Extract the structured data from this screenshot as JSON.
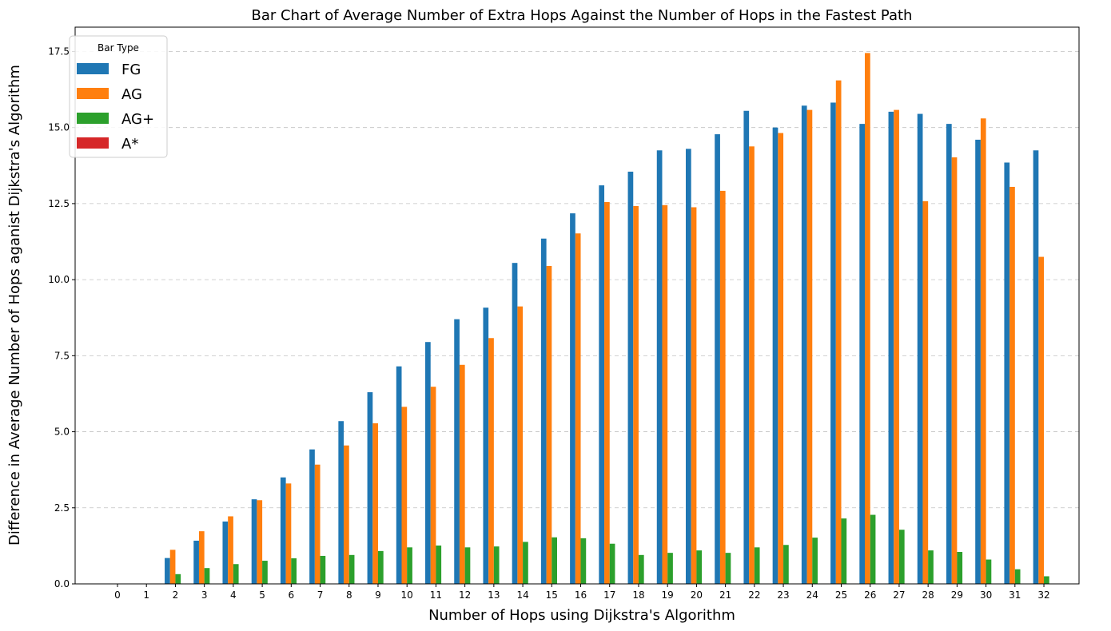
{
  "chart_data": {
    "type": "bar",
    "title": "Bar Chart of Average Number of Extra Hops Against the Number of Hops in the Fastest Path",
    "xlabel": "Number of Hops using Dijkstra's Algorithm",
    "ylabel": "Difference in Average Number of Hops aganist Dijkstra's Algorithm",
    "categories": [
      "0",
      "1",
      "2",
      "3",
      "4",
      "5",
      "6",
      "7",
      "8",
      "9",
      "10",
      "11",
      "12",
      "13",
      "14",
      "15",
      "16",
      "17",
      "18",
      "19",
      "20",
      "21",
      "22",
      "23",
      "24",
      "25",
      "26",
      "27",
      "28",
      "29",
      "30",
      "31",
      "32"
    ],
    "ylim": [
      0,
      18.3
    ],
    "yticks": [
      0.0,
      2.5,
      5.0,
      7.5,
      10.0,
      12.5,
      15.0,
      17.5
    ],
    "ytick_labels": [
      "0.0",
      "2.5",
      "5.0",
      "7.5",
      "10.0",
      "12.5",
      "15.0",
      "17.5"
    ],
    "grid": "horizontal dashed",
    "legend": {
      "title": "Bar Type",
      "placement": "top-left"
    },
    "series": [
      {
        "name": "FG",
        "color": "#1f77b4",
        "values": [
          0,
          0,
          0.85,
          1.42,
          2.05,
          2.78,
          3.5,
          4.42,
          5.35,
          6.3,
          7.15,
          7.95,
          8.7,
          9.08,
          10.55,
          11.35,
          12.18,
          13.1,
          13.55,
          14.25,
          14.3,
          14.78,
          15.55,
          15.0,
          15.72,
          15.82,
          15.12,
          15.52,
          15.45,
          15.12,
          14.6,
          13.85,
          14.25
        ]
      },
      {
        "name": "AG",
        "color": "#ff7f0e",
        "values": [
          0,
          0,
          1.12,
          1.73,
          2.22,
          2.75,
          3.3,
          3.92,
          4.55,
          5.28,
          5.82,
          6.48,
          7.2,
          8.08,
          9.12,
          10.45,
          11.52,
          12.55,
          12.42,
          12.45,
          12.38,
          12.92,
          14.38,
          14.82,
          15.58,
          16.55,
          17.45,
          15.58,
          12.58,
          14.02,
          15.3,
          13.05,
          10.75
        ]
      },
      {
        "name": "AG+",
        "color": "#2ca02c",
        "values": [
          0,
          0,
          0.32,
          0.52,
          0.65,
          0.76,
          0.84,
          0.92,
          0.95,
          1.08,
          1.2,
          1.26,
          1.2,
          1.23,
          1.38,
          1.53,
          1.5,
          1.32,
          0.95,
          1.02,
          1.1,
          1.02,
          1.2,
          1.28,
          1.52,
          2.15,
          2.27,
          1.78,
          1.1,
          1.05,
          0.8,
          0.48,
          0.25
        ]
      },
      {
        "name": "A*",
        "color": "#d62728",
        "values": [
          0,
          0,
          0,
          0,
          0,
          0,
          0,
          0,
          0,
          0,
          0,
          0,
          0,
          0,
          0,
          0,
          0,
          0,
          0,
          0,
          0,
          0,
          0,
          0,
          0,
          0,
          0,
          0,
          0,
          0,
          0,
          0,
          0
        ]
      }
    ]
  }
}
